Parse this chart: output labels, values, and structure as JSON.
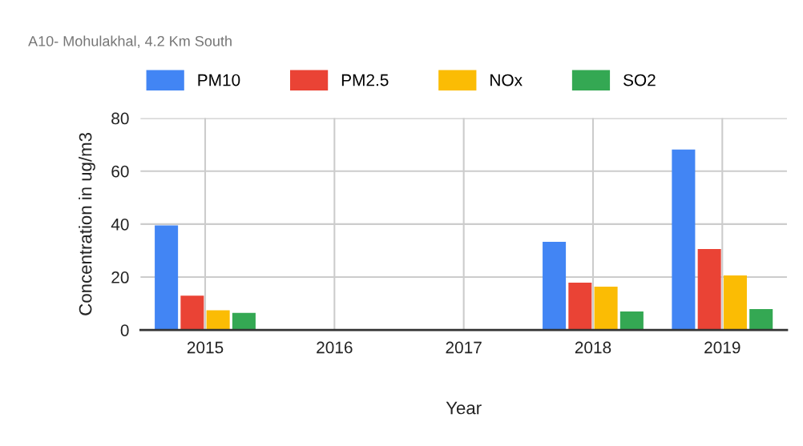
{
  "chart_data": {
    "type": "bar",
    "title": "A10- Mohulakhal, 4.2 Km South",
    "xlabel": "Year",
    "ylabel": "Concentration in ug/m3",
    "categories": [
      "2015",
      "2016",
      "2017",
      "2018",
      "2019"
    ],
    "series": [
      {
        "name": "PM10",
        "color": "#4285f4",
        "values": [
          39.5,
          null,
          null,
          33.3,
          68.2
        ]
      },
      {
        "name": "PM2.5",
        "color": "#ea4335",
        "values": [
          13,
          null,
          null,
          17.9,
          30.6
        ]
      },
      {
        "name": "NOx",
        "color": "#fbbc04",
        "values": [
          7.5,
          null,
          null,
          16.4,
          20.6
        ]
      },
      {
        "name": "SO2",
        "color": "#34a853",
        "values": [
          6.5,
          null,
          null,
          7,
          7.9
        ]
      }
    ],
    "ylim": [
      0,
      80
    ],
    "yticks": [
      0,
      20,
      40,
      60,
      80
    ],
    "grid": true,
    "legend": "top"
  }
}
